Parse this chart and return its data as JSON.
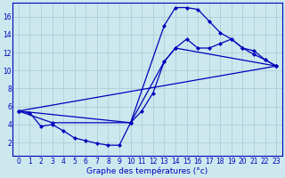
{
  "xlabel": "Graphe des températures (°c)",
  "background_color": "#cce8ee",
  "grid_color": "#aad0d8",
  "line_color": "#0000bb",
  "xlim": [
    -0.5,
    23.5
  ],
  "ylim": [
    0.5,
    17.5
  ],
  "xticks": [
    0,
    1,
    2,
    3,
    4,
    5,
    6,
    7,
    8,
    9,
    10,
    11,
    12,
    13,
    14,
    15,
    16,
    17,
    18,
    19,
    20,
    21,
    22,
    23
  ],
  "yticks": [
    2,
    4,
    6,
    8,
    10,
    12,
    14,
    16
  ],
  "line1_x": [
    0,
    1,
    2,
    3,
    4,
    5,
    6,
    7,
    8,
    9,
    10,
    13,
    14,
    15,
    16,
    17,
    18,
    19,
    20,
    21,
    22,
    23
  ],
  "line1_y": [
    5.5,
    5.3,
    3.8,
    4.0,
    3.3,
    2.5,
    2.2,
    1.9,
    1.7,
    1.7,
    4.2,
    15.0,
    17.0,
    17.0,
    16.8,
    15.5,
    14.2,
    13.5,
    12.5,
    11.8,
    11.2,
    10.5
  ],
  "line2_x": [
    0,
    3,
    10,
    11,
    12,
    13,
    14,
    15,
    16,
    17,
    18,
    19,
    20,
    21,
    22,
    23
  ],
  "line2_y": [
    5.5,
    4.2,
    4.2,
    5.5,
    7.5,
    11.0,
    12.5,
    13.5,
    12.5,
    12.5,
    13.0,
    13.5,
    12.5,
    12.2,
    11.2,
    10.5
  ],
  "line3_x": [
    0,
    23
  ],
  "line3_y": [
    5.5,
    10.5
  ],
  "line4_x": [
    0,
    10,
    13,
    14,
    23
  ],
  "line4_y": [
    5.5,
    4.2,
    11.0,
    12.5,
    10.5
  ]
}
